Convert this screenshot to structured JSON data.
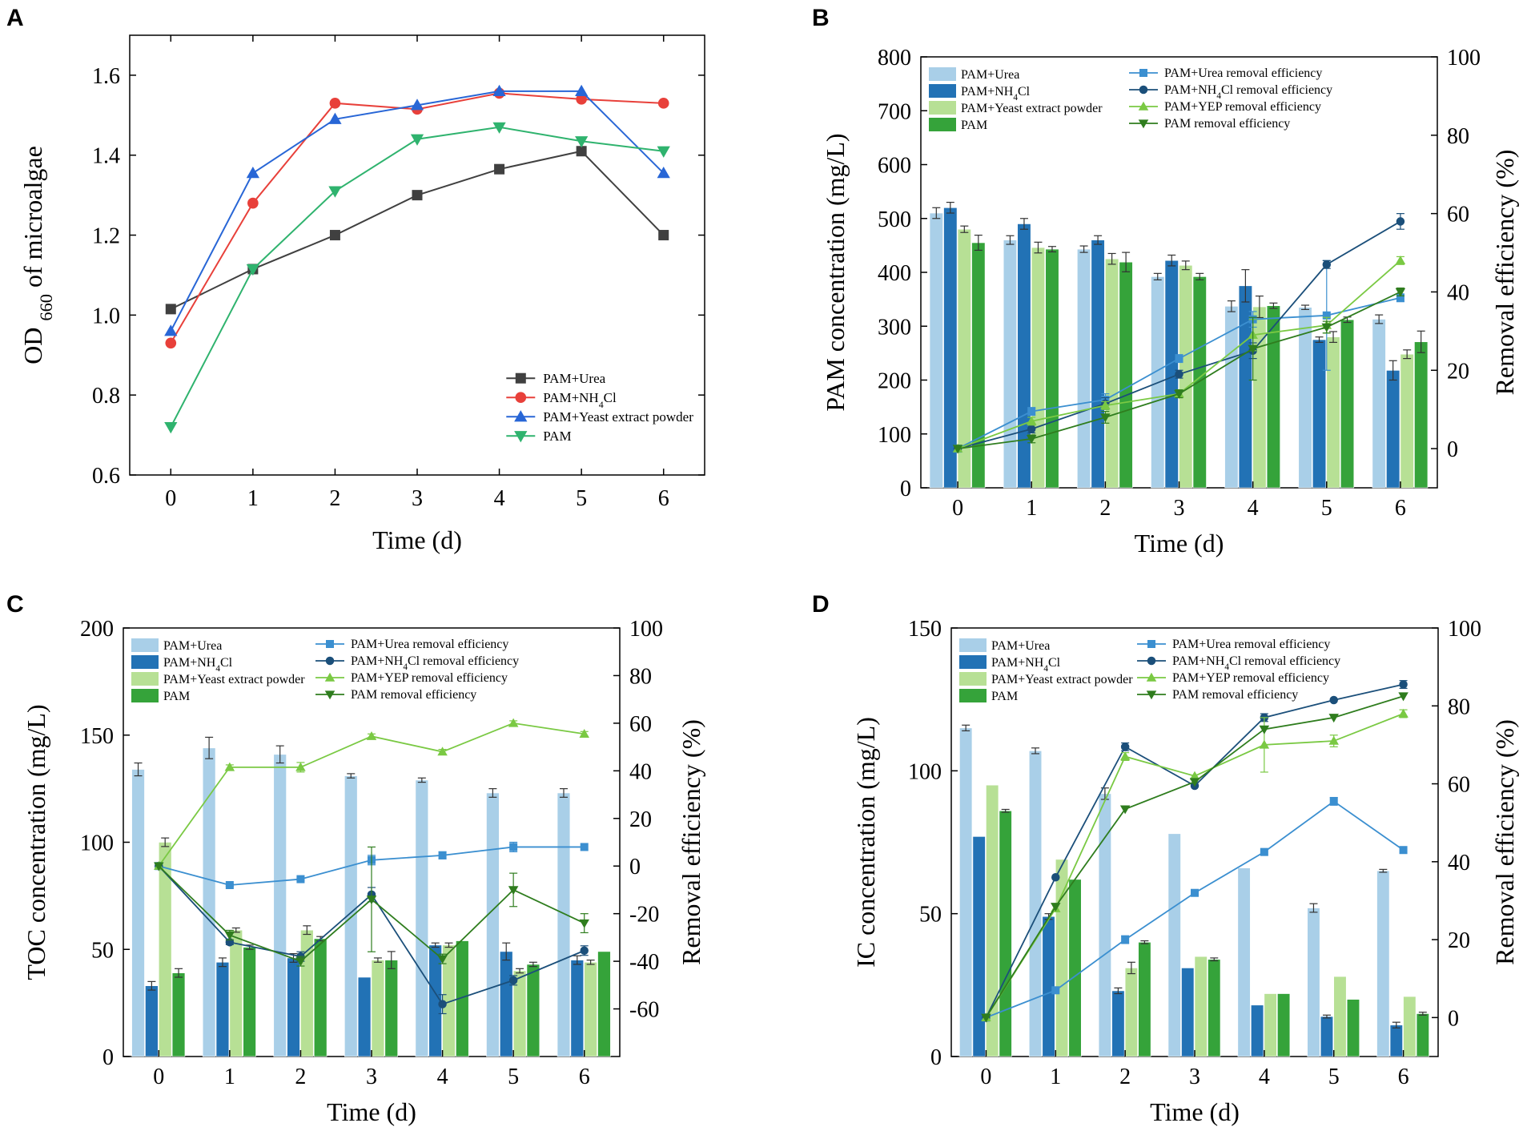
{
  "chart_data": [
    {
      "panel": "A",
      "type": "line",
      "xlabel": "Time (d)",
      "ylabel": "OD 660 of microalgae",
      "ylabel_parts": [
        "OD ",
        "660",
        " of microalgae"
      ],
      "x": [
        0,
        1,
        2,
        3,
        4,
        5,
        6
      ],
      "xlim": [
        -0.5,
        6.5
      ],
      "ylim": [
        0.6,
        1.7
      ],
      "yticks": [
        0.6,
        0.8,
        1.0,
        1.2,
        1.4,
        1.6
      ],
      "xticks": [
        0,
        1,
        2,
        3,
        4,
        5,
        6
      ],
      "legend_position": "lower-right",
      "series": [
        {
          "name": "PAM+Urea",
          "label_parts": [
            "PAM+Urea"
          ],
          "color": "#404040",
          "marker": "square",
          "values": [
            1.015,
            1.115,
            1.2,
            1.3,
            1.365,
            1.41,
            1.2
          ]
        },
        {
          "name": "PAM+NH4Cl",
          "label_parts": [
            "PAM+NH",
            "4",
            "Cl"
          ],
          "color": "#e8403a",
          "marker": "circle",
          "values": [
            0.93,
            1.28,
            1.53,
            1.515,
            1.555,
            1.54,
            1.53
          ]
        },
        {
          "name": "PAM+Yeast extract powder",
          "label_parts": [
            "PAM+Yeast extract powder"
          ],
          "color": "#2866d6",
          "marker": "triangle-up",
          "values": [
            0.96,
            1.355,
            1.49,
            1.525,
            1.56,
            1.56,
            1.355
          ]
        },
        {
          "name": "PAM",
          "label_parts": [
            "PAM"
          ],
          "color": "#2fb36e",
          "marker": "triangle-down",
          "values": [
            0.72,
            1.115,
            1.31,
            1.44,
            1.47,
            1.435,
            1.41
          ]
        }
      ]
    },
    {
      "panel": "B",
      "type": "bar+line",
      "xlabel": "Time (d)",
      "ylabel": "PAM concentration (mg/L)",
      "y2label": "Removal efficiency (%)",
      "categories": [
        "0",
        "1",
        "2",
        "3",
        "4",
        "5",
        "6"
      ],
      "ylim": [
        0,
        800
      ],
      "yticks": [
        0,
        100,
        200,
        300,
        400,
        500,
        600,
        700,
        800
      ],
      "y2lim": [
        -10,
        100
      ],
      "y2ticks": [
        0,
        20,
        40,
        60,
        80,
        100
      ],
      "bar_series": [
        {
          "name": "PAM+Urea",
          "label_parts": [
            "PAM+Urea"
          ],
          "color": "#a9cfe8",
          "values": [
            510,
            460,
            443,
            392,
            337,
            335,
            313
          ],
          "errors": [
            10,
            8,
            6,
            6,
            10,
            4,
            8
          ]
        },
        {
          "name": "PAM+NH4Cl",
          "label_parts": [
            "PAM+NH",
            "4",
            "Cl"
          ],
          "color": "#2272b5",
          "values": [
            520,
            490,
            460,
            422,
            375,
            275,
            218
          ],
          "errors": [
            10,
            10,
            8,
            10,
            30,
            5,
            18
          ]
        },
        {
          "name": "PAM+Yeast extract powder",
          "label_parts": [
            "PAM+Yeast extract powder"
          ],
          "color": "#b7e095",
          "values": [
            480,
            446,
            425,
            413,
            336,
            280,
            248
          ],
          "errors": [
            6,
            10,
            10,
            8,
            20,
            10,
            8
          ]
        },
        {
          "name": "PAM",
          "label_parts": [
            "PAM"
          ],
          "color": "#35a33a",
          "values": [
            455,
            443,
            419,
            392,
            338,
            312,
            271
          ],
          "errors": [
            14,
            5,
            18,
            6,
            5,
            5,
            20
          ]
        }
      ],
      "line_series": [
        {
          "name": "PAM+Urea removal efficiency",
          "label_parts": [
            "PAM+Urea removal efficiency"
          ],
          "color": "#3b8fd0",
          "marker": "square",
          "values": [
            0,
            9.5,
            12.5,
            23,
            33,
            34,
            38.5
          ],
          "errors": [
            0,
            1,
            1.5,
            1,
            2,
            14,
            1
          ]
        },
        {
          "name": "PAM+NH4Cl removal efficiency",
          "label_parts": [
            "PAM+NH",
            "4",
            "Cl removal efficiency"
          ],
          "color": "#1b4f7a",
          "marker": "circle",
          "values": [
            0,
            5,
            11.5,
            19,
            25,
            47,
            58
          ],
          "errors": [
            0,
            1,
            1.5,
            1,
            2,
            1,
            2
          ]
        },
        {
          "name": "PAM+YEP removal efficiency",
          "label_parts": [
            "PAM+YEP removal efficiency"
          ],
          "color": "#7ac943",
          "marker": "triangle-up",
          "values": [
            0,
            7,
            11,
            14,
            29,
            31.5,
            48
          ],
          "errors": [
            0,
            1,
            1,
            1,
            4,
            2,
            1
          ]
        },
        {
          "name": "PAM removal efficiency",
          "label_parts": [
            "PAM removal efficiency"
          ],
          "color": "#2f7d1e",
          "marker": "triangle-down",
          "values": [
            0,
            2.5,
            8,
            14,
            25.5,
            31,
            40
          ],
          "errors": [
            0,
            1,
            1.5,
            1,
            8,
            1.5,
            1
          ]
        }
      ]
    },
    {
      "panel": "C",
      "type": "bar+line",
      "xlabel": "Time (d)",
      "ylabel": "TOC concentration (mg/L)",
      "y2label": "Removal efficiency (%)",
      "categories": [
        "0",
        "1",
        "2",
        "3",
        "4",
        "5",
        "6"
      ],
      "ylim": [
        0,
        200
      ],
      "yticks": [
        0,
        50,
        100,
        150,
        200
      ],
      "y2lim": [
        -80,
        100
      ],
      "y2ticks": [
        -60,
        -40,
        -20,
        0,
        20,
        40,
        60,
        80,
        100
      ],
      "bar_series": [
        {
          "name": "PAM+Urea",
          "label_parts": [
            "PAM+Urea"
          ],
          "color": "#a9cfe8",
          "values": [
            134,
            144,
            141,
            131,
            129,
            123,
            123
          ],
          "errors": [
            3,
            5,
            4,
            1,
            1,
            2,
            2
          ]
        },
        {
          "name": "PAM+NH4Cl",
          "label_parts": [
            "PAM+NH",
            "4",
            "Cl"
          ],
          "color": "#2272b5",
          "values": [
            33,
            44,
            46,
            37,
            52,
            49,
            45
          ],
          "errors": [
            2,
            2,
            2,
            0,
            1,
            4,
            2
          ]
        },
        {
          "name": "PAM+Yeast extract powder",
          "label_parts": [
            "PAM+Yeast extract powder"
          ],
          "color": "#b7e095",
          "values": [
            100,
            59,
            59,
            45,
            52,
            40,
            44
          ],
          "errors": [
            2,
            1,
            2,
            1,
            1,
            1,
            1
          ]
        },
        {
          "name": "PAM",
          "label_parts": [
            "PAM"
          ],
          "color": "#35a33a",
          "values": [
            39,
            51,
            55,
            45,
            54,
            43,
            49
          ],
          "errors": [
            2,
            1,
            1,
            4,
            0,
            1,
            0
          ]
        }
      ],
      "line_series": [
        {
          "name": "PAM+Urea removal efficiency",
          "label_parts": [
            "PAM+Urea removal efficiency"
          ],
          "color": "#3b8fd0",
          "marker": "square",
          "values": [
            0,
            -8,
            -5.5,
            2.5,
            4.5,
            8,
            8
          ],
          "errors": [
            0,
            0.5,
            0.5,
            2,
            1.5,
            2,
            0
          ]
        },
        {
          "name": "PAM+NH4Cl removal efficiency",
          "label_parts": [
            "PAM+NH",
            "4",
            "Cl removal efficiency"
          ],
          "color": "#1b4f7a",
          "marker": "circle",
          "values": [
            0,
            -32,
            -38,
            -12,
            -58,
            -48,
            -35.5
          ],
          "errors": [
            0,
            1,
            2,
            3,
            4,
            2,
            2
          ]
        },
        {
          "name": "PAM+YEP removal efficiency",
          "label_parts": [
            "PAM+YEP removal efficiency"
          ],
          "color": "#7ac943",
          "marker": "triangle-up",
          "values": [
            0,
            41.5,
            41.5,
            54.5,
            48,
            60,
            55.5
          ],
          "errors": [
            0,
            1,
            2,
            1,
            1,
            1,
            1
          ]
        },
        {
          "name": "PAM removal efficiency",
          "label_parts": [
            "PAM removal efficiency"
          ],
          "color": "#2f7d1e",
          "marker": "triangle-down",
          "values": [
            0,
            -29,
            -40,
            -14,
            -39,
            -10,
            -24
          ],
          "errors": [
            0,
            2,
            2,
            22,
            2,
            7,
            4
          ]
        }
      ]
    },
    {
      "panel": "D",
      "type": "bar+line",
      "xlabel": "Time (d)",
      "ylabel": "IC concentration (mg/L)",
      "y2label": "Removal efficiency (%)",
      "categories": [
        "0",
        "1",
        "2",
        "3",
        "4",
        "5",
        "6"
      ],
      "ylim": [
        0,
        150
      ],
      "yticks": [
        0,
        50,
        100,
        150
      ],
      "y2lim": [
        -10,
        100
      ],
      "y2ticks": [
        0,
        20,
        40,
        60,
        80,
        100
      ],
      "bar_series": [
        {
          "name": "PAM+Urea",
          "label_parts": [
            "PAM+Urea"
          ],
          "color": "#a9cfe8",
          "values": [
            115,
            107,
            92,
            78,
            66,
            52,
            65
          ],
          "errors": [
            1,
            1,
            2,
            0,
            0,
            1.5,
            0.5
          ]
        },
        {
          "name": "PAM+NH4Cl",
          "label_parts": [
            "PAM+NH",
            "4",
            "Cl"
          ],
          "color": "#2272b5",
          "values": [
            77,
            49,
            23,
            31,
            18,
            14,
            11
          ],
          "errors": [
            0,
            1,
            1,
            0,
            0,
            0.5,
            1
          ]
        },
        {
          "name": "PAM+Yeast extract powder",
          "label_parts": [
            "PAM+Yeast extract powder"
          ],
          "color": "#b7e095",
          "values": [
            95,
            69,
            31,
            35,
            22,
            28,
            21
          ],
          "errors": [
            0,
            0,
            2,
            0,
            0,
            0,
            0
          ]
        },
        {
          "name": "PAM",
          "label_parts": [
            "PAM"
          ],
          "color": "#35a33a",
          "values": [
            86,
            62,
            40,
            34,
            22,
            20,
            15
          ],
          "errors": [
            0.5,
            0,
            0.5,
            0.5,
            0,
            0,
            0.5
          ]
        }
      ],
      "line_series": [
        {
          "name": "PAM+Urea removal efficiency",
          "label_parts": [
            "PAM+Urea removal efficiency"
          ],
          "color": "#3b8fd0",
          "marker": "square",
          "values": [
            0,
            7,
            20,
            32,
            42.5,
            55.5,
            43
          ],
          "errors": [
            0,
            0,
            1,
            0,
            0,
            1,
            0
          ]
        },
        {
          "name": "PAM+NH4Cl removal efficiency",
          "label_parts": [
            "PAM+NH",
            "4",
            "Cl removal efficiency"
          ],
          "color": "#1b4f7a",
          "marker": "circle",
          "values": [
            0,
            36,
            69.5,
            59.5,
            77,
            81.5,
            85.5
          ],
          "errors": [
            0,
            0,
            1,
            0,
            1,
            0,
            1
          ]
        },
        {
          "name": "PAM+YEP removal efficiency",
          "label_parts": [
            "PAM+YEP removal efficiency"
          ],
          "color": "#7ac943",
          "marker": "triangle-up",
          "values": [
            0,
            28,
            67,
            62,
            70,
            71,
            78
          ],
          "errors": [
            0,
            0,
            1,
            0,
            7,
            1.5,
            1
          ]
        },
        {
          "name": "PAM removal efficiency",
          "label_parts": [
            "PAM removal efficiency"
          ],
          "color": "#2f7d1e",
          "marker": "triangle-down",
          "values": [
            0,
            28.5,
            53.5,
            60.5,
            74,
            77,
            82.5
          ],
          "errors": [
            0,
            0,
            0,
            0,
            0,
            0,
            0
          ]
        }
      ]
    }
  ]
}
